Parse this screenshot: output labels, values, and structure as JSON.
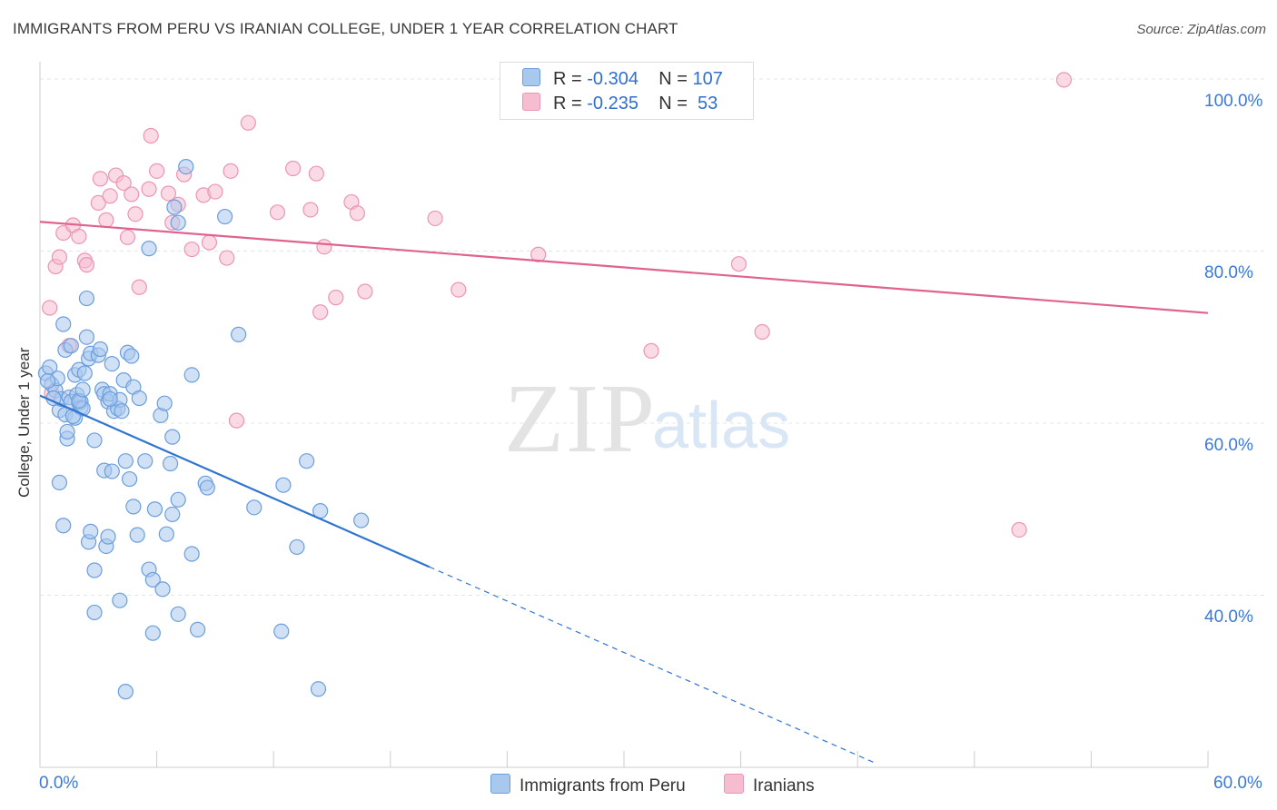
{
  "title": "IMMIGRANTS FROM PERU VS IRANIAN COLLEGE, UNDER 1 YEAR CORRELATION CHART",
  "source": "Source: ZipAtlas.com",
  "watermark": {
    "zip": "ZIP",
    "atlas": "atlas"
  },
  "colors": {
    "blue_fill": "#a9c8ee",
    "blue_stroke": "#6b9edc",
    "blue_line": "#2f74d0",
    "pink_fill": "#f6bcd0",
    "pink_stroke": "#ec95b3",
    "pink_line": "#e0628f",
    "tick_text": "#3b78d8",
    "grid": "#e4e4e4"
  },
  "legend": {
    "rows": [
      {
        "r_label": "R =",
        "r_value": "-0.304",
        "n_label": "N =",
        "n_value": "107",
        "swatch": "#a9c8ee"
      },
      {
        "r_label": "R =",
        "r_value": "-0.235",
        "n_label": "N =",
        "n_value": " 53",
        "swatch": "#f6bcd0"
      }
    ]
  },
  "bottom_legend": [
    {
      "label": "Immigrants from Peru",
      "swatch": "#a9c8ee"
    },
    {
      "label": "Iranians",
      "swatch": "#f6bcd0"
    }
  ],
  "chart_data": {
    "type": "scatter",
    "title": "IMMIGRANTS FROM PERU VS IRANIAN COLLEGE, UNDER 1 YEAR CORRELATION CHART",
    "xlabel": "",
    "ylabel": "College, Under 1 year",
    "xlim": [
      0,
      60
    ],
    "ylim": [
      20,
      102
    ],
    "x_tick_labels": [
      "0.0%",
      "60.0%"
    ],
    "y_ticks": [
      40,
      60,
      80,
      100
    ],
    "y_tick_labels": [
      "40.0%",
      "60.0%",
      "80.0%",
      "100.0%"
    ],
    "series": [
      {
        "name": "Immigrants from Peru",
        "R": -0.304,
        "N": 107,
        "trend": {
          "x0": 0,
          "y0": 63.2,
          "x1": 20,
          "y1": 43.3,
          "dashed_to_x": 43,
          "dashed_to_y": 20.4
        },
        "points": [
          [
            0.3,
            65.8
          ],
          [
            0.5,
            66.5
          ],
          [
            0.6,
            64.5
          ],
          [
            0.8,
            63.8
          ],
          [
            0.9,
            65.2
          ],
          [
            1.0,
            61.5
          ],
          [
            1.1,
            62.8
          ],
          [
            1.2,
            71.5
          ],
          [
            1.3,
            68.5
          ],
          [
            1.3,
            61.0
          ],
          [
            1.4,
            58.2
          ],
          [
            1.4,
            59.0
          ],
          [
            1.5,
            63.0
          ],
          [
            1.6,
            62.5
          ],
          [
            1.6,
            69.0
          ],
          [
            1.8,
            60.6
          ],
          [
            1.8,
            65.6
          ],
          [
            1.9,
            63.3
          ],
          [
            2.0,
            62.4
          ],
          [
            2.0,
            66.2
          ],
          [
            2.1,
            62.5
          ],
          [
            2.1,
            61.8
          ],
          [
            2.2,
            61.7
          ],
          [
            2.3,
            65.8
          ],
          [
            2.4,
            74.5
          ],
          [
            2.4,
            70.0
          ],
          [
            2.5,
            67.5
          ],
          [
            2.6,
            68.1
          ],
          [
            2.8,
            58.0
          ],
          [
            3.0,
            67.9
          ],
          [
            3.1,
            68.6
          ],
          [
            3.2,
            63.9
          ],
          [
            3.3,
            63.4
          ],
          [
            3.5,
            62.5
          ],
          [
            3.6,
            63.4
          ],
          [
            3.7,
            66.9
          ],
          [
            3.8,
            61.4
          ],
          [
            4.0,
            61.7
          ],
          [
            4.1,
            62.7
          ],
          [
            4.3,
            65.0
          ],
          [
            4.5,
            68.2
          ],
          [
            4.7,
            67.8
          ],
          [
            4.8,
            64.2
          ],
          [
            5.1,
            62.9
          ],
          [
            5.6,
            80.3
          ],
          [
            6.2,
            60.9
          ],
          [
            6.4,
            62.3
          ],
          [
            6.8,
            58.4
          ],
          [
            7.1,
            83.3
          ],
          [
            7.5,
            89.8
          ],
          [
            7.8,
            65.6
          ],
          [
            6.9,
            85.1
          ],
          [
            9.5,
            84.0
          ],
          [
            10.2,
            70.3
          ],
          [
            1.0,
            53.1
          ],
          [
            1.2,
            48.1
          ],
          [
            2.5,
            46.2
          ],
          [
            2.6,
            47.4
          ],
          [
            2.8,
            42.9
          ],
          [
            2.8,
            38.0
          ],
          [
            3.3,
            54.5
          ],
          [
            3.4,
            45.7
          ],
          [
            3.5,
            46.8
          ],
          [
            3.7,
            54.4
          ],
          [
            4.1,
            39.4
          ],
          [
            4.4,
            55.6
          ],
          [
            4.6,
            53.5
          ],
          [
            4.8,
            50.3
          ],
          [
            5.0,
            47.0
          ],
          [
            5.4,
            55.6
          ],
          [
            5.6,
            43.0
          ],
          [
            5.8,
            41.8
          ],
          [
            5.8,
            35.6
          ],
          [
            5.9,
            50.0
          ],
          [
            6.3,
            40.7
          ],
          [
            6.5,
            47.1
          ],
          [
            6.7,
            55.3
          ],
          [
            6.8,
            49.4
          ],
          [
            7.1,
            51.1
          ],
          [
            7.1,
            37.8
          ],
          [
            7.8,
            44.8
          ],
          [
            8.1,
            36.0
          ],
          [
            8.5,
            53.0
          ],
          [
            8.6,
            52.5
          ],
          [
            11.0,
            50.2
          ],
          [
            12.4,
            35.8
          ],
          [
            12.5,
            52.8
          ],
          [
            13.2,
            45.6
          ],
          [
            13.7,
            55.6
          ],
          [
            14.3,
            29.1
          ],
          [
            14.4,
            49.8
          ],
          [
            16.5,
            48.7
          ],
          [
            4.4,
            28.8
          ],
          [
            2.0,
            62.6
          ],
          [
            1.7,
            60.8
          ],
          [
            2.2,
            63.9
          ],
          [
            0.7,
            62.9
          ],
          [
            0.4,
            64.9
          ],
          [
            3.6,
            62.8
          ],
          [
            4.2,
            61.4
          ]
        ]
      },
      {
        "name": "Iranians",
        "R": -0.235,
        "N": 53,
        "trend": {
          "x0": 0,
          "y0": 83.4,
          "x1": 60,
          "y1": 72.8
        },
        "points": [
          [
            0.5,
            73.4
          ],
          [
            0.6,
            63.5
          ],
          [
            0.8,
            78.2
          ],
          [
            1.0,
            79.3
          ],
          [
            1.2,
            82.1
          ],
          [
            1.5,
            69.0
          ],
          [
            1.7,
            83.0
          ],
          [
            2.0,
            81.7
          ],
          [
            2.3,
            78.9
          ],
          [
            2.4,
            78.4
          ],
          [
            3.0,
            85.6
          ],
          [
            3.1,
            88.4
          ],
          [
            3.4,
            83.6
          ],
          [
            3.6,
            86.4
          ],
          [
            3.9,
            88.8
          ],
          [
            4.3,
            87.9
          ],
          [
            4.5,
            81.6
          ],
          [
            4.7,
            86.6
          ],
          [
            4.9,
            84.3
          ],
          [
            5.1,
            75.8
          ],
          [
            5.6,
            87.2
          ],
          [
            5.7,
            93.4
          ],
          [
            6.0,
            89.3
          ],
          [
            6.6,
            86.7
          ],
          [
            6.8,
            83.3
          ],
          [
            7.1,
            85.4
          ],
          [
            7.4,
            88.9
          ],
          [
            7.8,
            80.2
          ],
          [
            8.4,
            86.5
          ],
          [
            8.7,
            81.0
          ],
          [
            9.0,
            86.9
          ],
          [
            9.6,
            79.2
          ],
          [
            9.8,
            89.3
          ],
          [
            10.1,
            60.3
          ],
          [
            10.7,
            94.9
          ],
          [
            12.2,
            84.5
          ],
          [
            13.0,
            89.6
          ],
          [
            13.9,
            84.8
          ],
          [
            14.2,
            89.0
          ],
          [
            14.4,
            72.9
          ],
          [
            14.6,
            80.5
          ],
          [
            15.2,
            74.6
          ],
          [
            16.0,
            85.7
          ],
          [
            16.3,
            84.4
          ],
          [
            16.7,
            75.3
          ],
          [
            20.3,
            83.8
          ],
          [
            21.5,
            75.5
          ],
          [
            25.6,
            79.6
          ],
          [
            31.4,
            68.4
          ],
          [
            35.9,
            78.5
          ],
          [
            37.1,
            70.6
          ],
          [
            50.3,
            47.6
          ],
          [
            52.6,
            99.9
          ]
        ]
      }
    ]
  }
}
